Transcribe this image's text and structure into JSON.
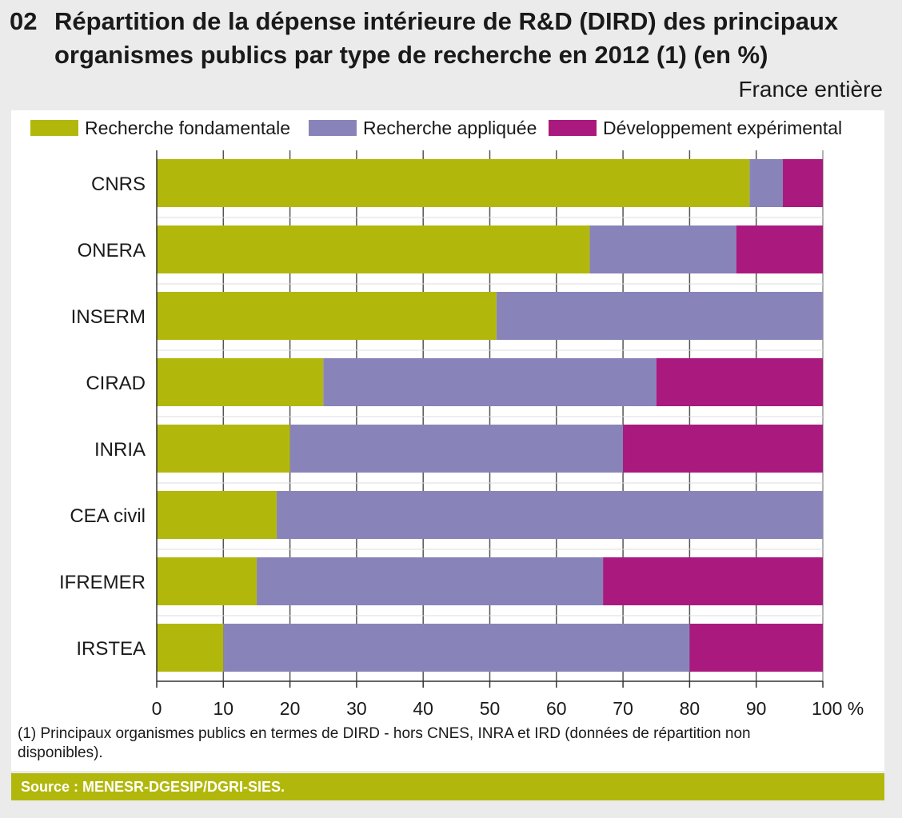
{
  "title": {
    "number": "02",
    "line1": "Répartition de la dépense intérieure de R&D (DIRD) des principaux",
    "line2": "organismes publics par type de recherche en 2012 (1) (en %)"
  },
  "scope": "France entière",
  "footnote": "(1) Principaux organismes publics en termes de DIRD - hors CNES, INRA et IRD (données de répartition non disponibles).",
  "source": "Source : MENESR-DGESIP/DGRI-SIES.",
  "chart_data": {
    "type": "bar",
    "orientation": "horizontal",
    "stacked": true,
    "categories": [
      "CNRS",
      "ONERA",
      "INSERM",
      "CIRAD",
      "INRIA",
      "CEA civil",
      "IFREMER",
      "IRSTEA"
    ],
    "series": [
      {
        "name": "Recherche fondamentale",
        "color": "#b2b80b",
        "values": [
          89,
          65,
          51,
          25,
          20,
          18,
          15,
          10
        ]
      },
      {
        "name": "Recherche appliquée",
        "color": "#8884b9",
        "values": [
          5,
          22,
          49,
          50,
          50,
          82,
          52,
          70
        ]
      },
      {
        "name": "Développement expérimental",
        "color": "#aa1a7e",
        "values": [
          6,
          13,
          0,
          25,
          30,
          0,
          33,
          20
        ]
      }
    ],
    "xlim": [
      0,
      100
    ],
    "xticks": [
      "0",
      "10",
      "20",
      "30",
      "40",
      "50",
      "60",
      "70",
      "80",
      "90",
      "100 %"
    ],
    "legend": "top",
    "grid": true
  }
}
